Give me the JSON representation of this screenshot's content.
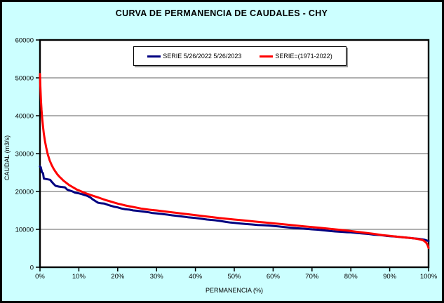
{
  "window": {
    "background_color": "#CCFFFF",
    "border_color": "#000000"
  },
  "chart_data": {
    "type": "line",
    "title": "CURVA DE PERMANENCIA DE CAUDALES - CHY",
    "xlabel": "PERMANENCIA (%)",
    "ylabel": "CAUDAL (m3/s)",
    "xlim": [
      0,
      100
    ],
    "ylim": [
      0,
      60000
    ],
    "x_tick_values": [
      0,
      10,
      20,
      30,
      40,
      50,
      60,
      70,
      80,
      90,
      100
    ],
    "x_tick_labels": [
      "0%",
      "10%",
      "20%",
      "30%",
      "40%",
      "50%",
      "60%",
      "70%",
      "80%",
      "90%",
      "100%"
    ],
    "y_tick_values": [
      0,
      10000,
      20000,
      30000,
      40000,
      50000,
      60000
    ],
    "y_tick_labels": [
      "0",
      "10000",
      "20000",
      "30000",
      "40000",
      "50000",
      "60000"
    ],
    "grid": "horizontal",
    "grid_color": "#808080",
    "plot_background": "#FFFFFF",
    "frame_color": "#000000",
    "legend_position": "top-center",
    "series": [
      {
        "name": "SERIE 5/26/2022 5/26/2023",
        "color": "#000080",
        "x": [
          0,
          0.2,
          0.5,
          0.8,
          1,
          1.5,
          2,
          2.6,
          3,
          3.6,
          4,
          4.8,
          5.4,
          6.4,
          7,
          7.8,
          8.4,
          9,
          10,
          10.8,
          11.4,
          12,
          13,
          13.6,
          14.2,
          15,
          15.6,
          16.6,
          17.4,
          18,
          19,
          20,
          21,
          22,
          23,
          24,
          25,
          26.5,
          28,
          29,
          30,
          31.5,
          33,
          34,
          35,
          36.5,
          38,
          39,
          40,
          41.5,
          43,
          44,
          45,
          46.5,
          48,
          49,
          50,
          51.5,
          53,
          54.5,
          56,
          57.5,
          59,
          60,
          61.5,
          63,
          64.5,
          66,
          67.5,
          69,
          70,
          71.5,
          73,
          74.5,
          76,
          77.5,
          79,
          80,
          81.5,
          83,
          84.5,
          86,
          87.5,
          89,
          90,
          91.5,
          93,
          94.5,
          96,
          97.5,
          99,
          100
        ],
        "y": [
          26600,
          26400,
          25100,
          24800,
          23400,
          23300,
          23200,
          23100,
          22600,
          21900,
          21500,
          21300,
          21200,
          21100,
          20500,
          20200,
          20000,
          19700,
          19500,
          19300,
          19100,
          18900,
          18400,
          17900,
          17500,
          17000,
          16900,
          16800,
          16500,
          16300,
          16000,
          15800,
          15500,
          15300,
          15200,
          15000,
          14900,
          14700,
          14500,
          14300,
          14200,
          14050,
          13850,
          13700,
          13600,
          13400,
          13200,
          13100,
          13000,
          12800,
          12600,
          12500,
          12400,
          12200,
          11950,
          11800,
          11700,
          11550,
          11400,
          11300,
          11150,
          11100,
          11000,
          10900,
          10750,
          10600,
          10450,
          10300,
          10200,
          10100,
          10000,
          9900,
          9750,
          9600,
          9450,
          9350,
          9250,
          9200,
          9050,
          8900,
          8800,
          8600,
          8500,
          8300,
          8200,
          8100,
          7950,
          7800,
          7650,
          7500,
          7250,
          6900
        ]
      },
      {
        "name": "SERIE=(1971-2022)",
        "color": "#FF0000",
        "x": [
          0,
          0.1,
          0.25,
          0.4,
          0.6,
          0.8,
          1,
          1.3,
          1.6,
          2,
          2.5,
          3,
          3.5,
          4,
          4.5,
          5,
          5.5,
          6,
          6.5,
          7,
          7.5,
          8,
          8.5,
          9,
          9.5,
          10,
          10.5,
          11,
          12,
          13,
          14,
          15,
          16,
          17,
          18,
          19,
          20,
          21,
          22,
          23,
          24,
          25,
          26,
          27,
          28,
          29,
          30,
          32,
          34,
          36,
          38,
          40,
          42,
          44,
          46,
          48,
          50,
          52,
          54,
          56,
          58,
          60,
          62,
          64,
          66,
          68,
          70,
          72,
          74,
          76,
          78,
          80,
          82,
          84,
          86,
          88,
          90,
          92,
          94,
          95,
          96,
          97,
          98,
          98.7,
          99.3,
          99.7,
          100
        ],
        "y": [
          51000,
          47500,
          44000,
          41500,
          39000,
          37000,
          35200,
          33200,
          31600,
          29800,
          28200,
          27000,
          26000,
          25200,
          24500,
          23900,
          23400,
          22900,
          22500,
          22100,
          21700,
          21400,
          21100,
          20800,
          20500,
          20300,
          20050,
          19850,
          19450,
          19100,
          18750,
          18400,
          18050,
          17700,
          17400,
          17100,
          16800,
          16550,
          16300,
          16100,
          15900,
          15700,
          15500,
          15350,
          15200,
          15100,
          15000,
          14750,
          14500,
          14250,
          14000,
          13750,
          13500,
          13250,
          13000,
          12800,
          12600,
          12400,
          12200,
          12000,
          11800,
          11600,
          11400,
          11200,
          11000,
          10800,
          10600,
          10400,
          10200,
          10000,
          9800,
          9550,
          9300,
          9050,
          8800,
          8500,
          8300,
          8050,
          7850,
          7750,
          7650,
          7500,
          7300,
          7050,
          6600,
          6000,
          5100
        ]
      }
    ]
  }
}
